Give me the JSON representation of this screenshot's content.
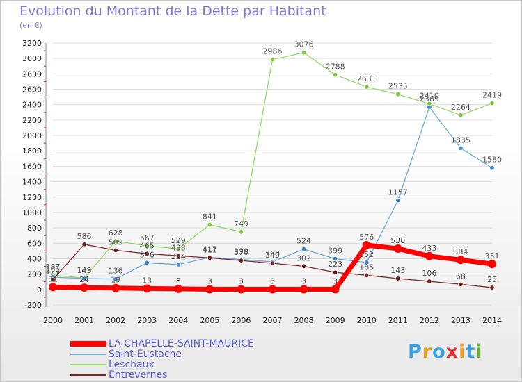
{
  "title": "Evolution du Montant de la Dette par Habitant",
  "subtitle": "(en €)",
  "logo": {
    "text": "Proxiti",
    "colors": [
      "#3aa0e0",
      "#f0a020",
      "#3aa0e0",
      "#e03030",
      "#f0a020",
      "#3aa0e0",
      "#60b030"
    ]
  },
  "colors": {
    "title": "#7b7bd6",
    "axis_text": "#222222",
    "value_text": "#555555",
    "grid": "#dcdcdc"
  },
  "chart_data": {
    "type": "line",
    "x": [
      "2000",
      "2001",
      "2002",
      "2003",
      "2004",
      "2005",
      "2006",
      "2007",
      "2008",
      "2009",
      "2010",
      "2011",
      "2012",
      "2013",
      "2014"
    ],
    "ylim": [
      -200,
      3200
    ],
    "yticks": [
      -200,
      0,
      200,
      400,
      600,
      800,
      1000,
      1200,
      1400,
      1600,
      1800,
      2000,
      2200,
      2400,
      2600,
      2800,
      3000,
      3200
    ],
    "grid": true,
    "legend_position": "bottom-left",
    "series": [
      {
        "name": "LA CHAPELLE-SAINT-MAURICE",
        "color": "#ff0000",
        "marker": "#ff0000",
        "width": 7,
        "values": [
          31,
          24,
          19,
          13,
          8,
          3,
          3,
          3,
          3,
          3,
          576,
          530,
          433,
          384,
          331
        ],
        "labels": [
          "31",
          "24",
          "19",
          "13",
          "8",
          "3",
          "3",
          "3",
          "3",
          "3",
          "576",
          "530",
          "433",
          "384",
          "331"
        ]
      },
      {
        "name": "Saint-Eustache",
        "color": "#6fa8dc",
        "marker": "#3d85c6",
        "width": 1.3,
        "values": [
          161,
          143,
          136,
          346,
          324,
          417,
          390,
          360,
          524,
          399,
          352,
          1157,
          2369,
          1835,
          1580
        ],
        "labels": [
          "161",
          "143",
          "136",
          "346",
          "324",
          "417",
          "390",
          "360",
          "524",
          "399",
          "352",
          "1157",
          "2369",
          "1835",
          "1580"
        ]
      },
      {
        "name": "Leschaux",
        "color": "#93d96b",
        "marker": "#7cc742",
        "width": 1.3,
        "values": [
          187,
          149,
          628,
          567,
          529,
          841,
          749,
          2986,
          3076,
          2788,
          2631,
          2535,
          2410,
          2264,
          2419
        ],
        "labels": [
          "187",
          "149",
          "628",
          "567",
          "529",
          "841",
          "749",
          "2986",
          "3076",
          "2788",
          "2631",
          "2535",
          "2410",
          "2264",
          "2419"
        ]
      },
      {
        "name": "Entrevernes",
        "color": "#7b2a2a",
        "marker": "#6b1f1f",
        "width": 1.3,
        "values": [
          127,
          586,
          509,
          465,
          438,
          411,
          376,
          340,
          302,
          223,
          185,
          143,
          106,
          68,
          25
        ],
        "labels": [
          "127",
          "586",
          "509",
          "465",
          "438",
          "411",
          "376",
          "340",
          "302",
          "223",
          "185",
          "143",
          "106",
          "68",
          "25"
        ]
      }
    ]
  }
}
